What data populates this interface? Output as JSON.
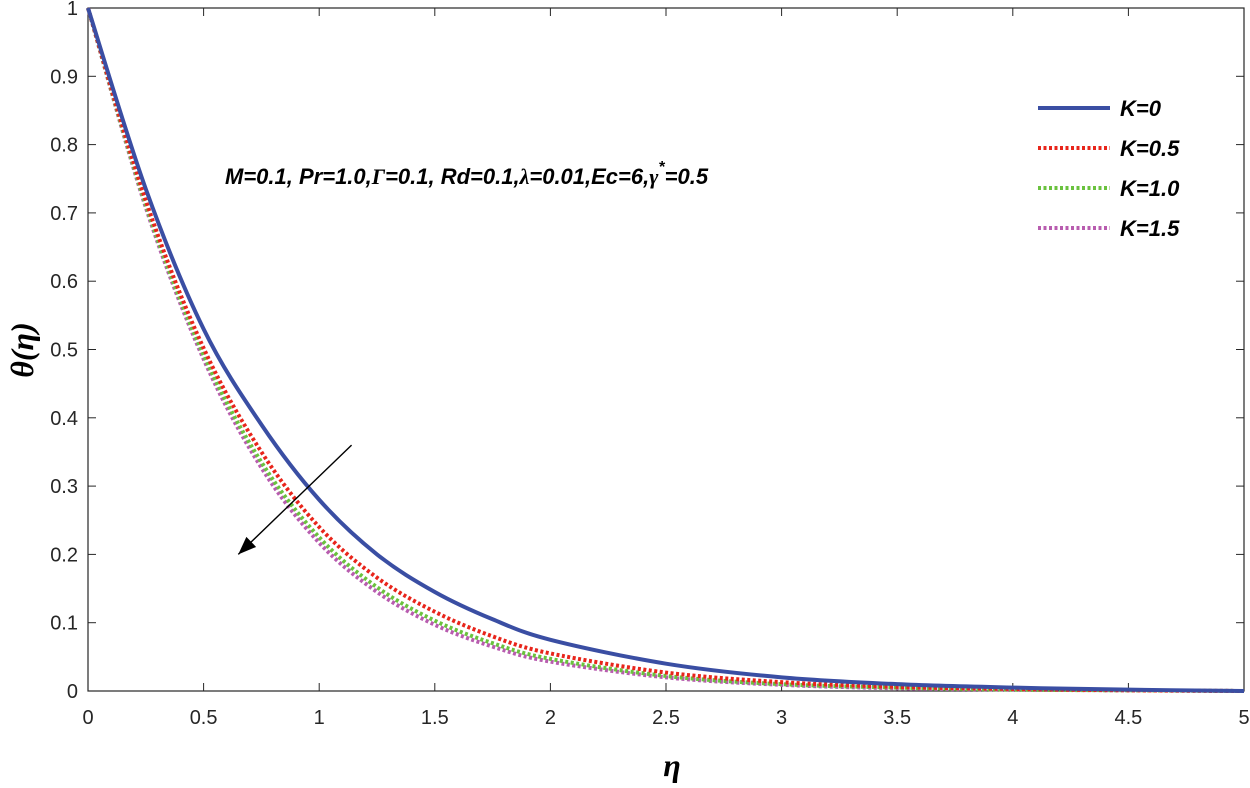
{
  "chart_data": {
    "type": "line",
    "title": "",
    "xlabel": "η",
    "ylabel": "θ(η)",
    "xlim": [
      0,
      5
    ],
    "ylim": [
      0,
      1
    ],
    "xticks": [
      "0",
      "0.5",
      "1",
      "1.5",
      "2",
      "2.5",
      "3",
      "3.5",
      "4",
      "4.5",
      "5"
    ],
    "yticks": [
      "0",
      "0.1",
      "0.2",
      "0.3",
      "0.4",
      "0.5",
      "0.6",
      "0.7",
      "0.8",
      "0.9",
      "1"
    ],
    "grid": false,
    "legend_position": "top-right",
    "annotation": {
      "parts": [
        {
          "text": "M=0.1, Pr=1.0,",
          "style": "plain"
        },
        {
          "text": "Γ",
          "style": "greek"
        },
        {
          "text": "=0.1, Rd=0.1,",
          "style": "plain"
        },
        {
          "text": "λ",
          "style": "greek"
        },
        {
          "text": "=0.01,Ec=6,",
          "style": "plain"
        },
        {
          "text": "γ",
          "style": "greek"
        },
        {
          "text": "*",
          "style": "sup"
        },
        {
          "text": "=0.5",
          "style": "plain"
        }
      ]
    },
    "arrow": {
      "direction": "decreasing K-effect",
      "from": [
        1.14,
        0.36
      ],
      "to": [
        0.65,
        0.2
      ]
    },
    "x": [
      0,
      0.25,
      0.5,
      0.75,
      1,
      1.25,
      1.5,
      1.75,
      2,
      2.5,
      3,
      3.5,
      4,
      4.5,
      5
    ],
    "series": [
      {
        "name": "K=0",
        "color": "#3a4ea3",
        "style": "solid",
        "values": [
          1,
          0.735,
          0.53,
          0.39,
          0.28,
          0.2,
          0.145,
          0.105,
          0.075,
          0.04,
          0.02,
          0.01,
          0.005,
          0.002,
          0
        ]
      },
      {
        "name": "K=0.5",
        "color": "#e8251b",
        "style": "dotted",
        "values": [
          1,
          0.718,
          0.502,
          0.35,
          0.24,
          0.166,
          0.116,
          0.08,
          0.055,
          0.027,
          0.013,
          0.006,
          0.003,
          0.001,
          0
        ]
      },
      {
        "name": "K=1.0",
        "color": "#6ac23e",
        "style": "dotted",
        "values": [
          1,
          0.712,
          0.492,
          0.335,
          0.225,
          0.152,
          0.103,
          0.07,
          0.047,
          0.022,
          0.01,
          0.005,
          0.002,
          0.001,
          0
        ]
      },
      {
        "name": "K=1.5",
        "color": "#b85caf",
        "style": "dotted",
        "values": [
          1,
          0.708,
          0.486,
          0.327,
          0.217,
          0.145,
          0.097,
          0.065,
          0.043,
          0.02,
          0.009,
          0.004,
          0.002,
          0.001,
          0
        ]
      }
    ]
  }
}
